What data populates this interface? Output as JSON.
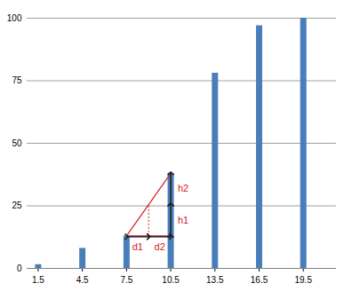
{
  "chart_data": {
    "type": "bar",
    "x": [
      1.5,
      4.5,
      7.5,
      10.5,
      13.5,
      16.5,
      19.5
    ],
    "values": [
      1.5,
      8,
      13,
      38,
      78,
      97,
      100
    ],
    "color": "#4a7ebb",
    "xlim": [
      0.75,
      21.75
    ],
    "xticks": [
      1.5,
      4.5,
      7.5,
      10.5,
      13.5,
      16.5,
      19.5
    ],
    "ylim": [
      0,
      100
    ],
    "yticks": [
      0,
      25,
      50,
      75,
      100
    ],
    "grid": true,
    "annotations": [
      "d1",
      "d2",
      "h1",
      "h2"
    ]
  }
}
